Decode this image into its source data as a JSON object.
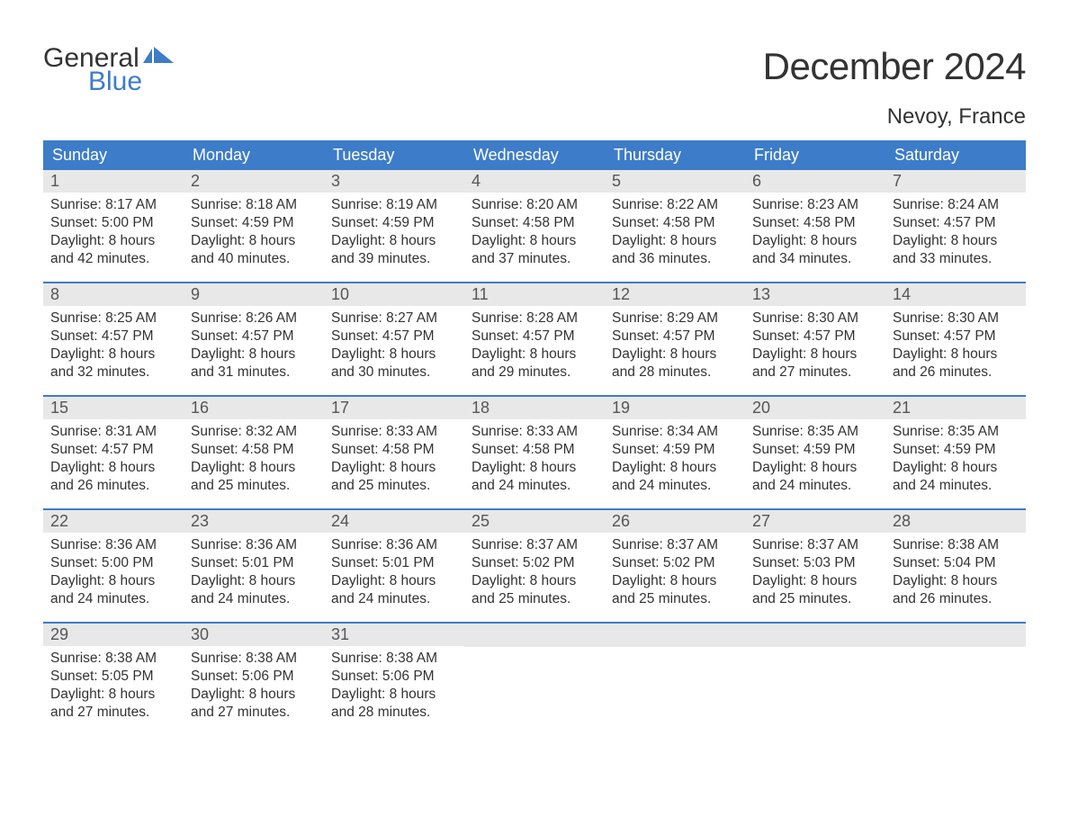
{
  "logo": {
    "text1": "General",
    "text2": "Blue",
    "flag_color": "#3d7cc9"
  },
  "title": "December 2024",
  "location": "Nevoy, France",
  "header_bg": "#3d7cc9",
  "header_text_color": "#ffffff",
  "daynum_bg": "#e8e8e8",
  "border_color": "#3d7cc9",
  "text_color": "#333333",
  "fontsize_title": 42,
  "fontsize_location": 24,
  "fontsize_weekday": 18,
  "fontsize_body": 15.5,
  "weekdays": [
    "Sunday",
    "Monday",
    "Tuesday",
    "Wednesday",
    "Thursday",
    "Friday",
    "Saturday"
  ],
  "weeks": [
    [
      {
        "n": "1",
        "sunrise": "8:17 AM",
        "sunset": "5:00 PM",
        "dl1": "Daylight: 8 hours",
        "dl2": "and 42 minutes."
      },
      {
        "n": "2",
        "sunrise": "8:18 AM",
        "sunset": "4:59 PM",
        "dl1": "Daylight: 8 hours",
        "dl2": "and 40 minutes."
      },
      {
        "n": "3",
        "sunrise": "8:19 AM",
        "sunset": "4:59 PM",
        "dl1": "Daylight: 8 hours",
        "dl2": "and 39 minutes."
      },
      {
        "n": "4",
        "sunrise": "8:20 AM",
        "sunset": "4:58 PM",
        "dl1": "Daylight: 8 hours",
        "dl2": "and 37 minutes."
      },
      {
        "n": "5",
        "sunrise": "8:22 AM",
        "sunset": "4:58 PM",
        "dl1": "Daylight: 8 hours",
        "dl2": "and 36 minutes."
      },
      {
        "n": "6",
        "sunrise": "8:23 AM",
        "sunset": "4:58 PM",
        "dl1": "Daylight: 8 hours",
        "dl2": "and 34 minutes."
      },
      {
        "n": "7",
        "sunrise": "8:24 AM",
        "sunset": "4:57 PM",
        "dl1": "Daylight: 8 hours",
        "dl2": "and 33 minutes."
      }
    ],
    [
      {
        "n": "8",
        "sunrise": "8:25 AM",
        "sunset": "4:57 PM",
        "dl1": "Daylight: 8 hours",
        "dl2": "and 32 minutes."
      },
      {
        "n": "9",
        "sunrise": "8:26 AM",
        "sunset": "4:57 PM",
        "dl1": "Daylight: 8 hours",
        "dl2": "and 31 minutes."
      },
      {
        "n": "10",
        "sunrise": "8:27 AM",
        "sunset": "4:57 PM",
        "dl1": "Daylight: 8 hours",
        "dl2": "and 30 minutes."
      },
      {
        "n": "11",
        "sunrise": "8:28 AM",
        "sunset": "4:57 PM",
        "dl1": "Daylight: 8 hours",
        "dl2": "and 29 minutes."
      },
      {
        "n": "12",
        "sunrise": "8:29 AM",
        "sunset": "4:57 PM",
        "dl1": "Daylight: 8 hours",
        "dl2": "and 28 minutes."
      },
      {
        "n": "13",
        "sunrise": "8:30 AM",
        "sunset": "4:57 PM",
        "dl1": "Daylight: 8 hours",
        "dl2": "and 27 minutes."
      },
      {
        "n": "14",
        "sunrise": "8:30 AM",
        "sunset": "4:57 PM",
        "dl1": "Daylight: 8 hours",
        "dl2": "and 26 minutes."
      }
    ],
    [
      {
        "n": "15",
        "sunrise": "8:31 AM",
        "sunset": "4:57 PM",
        "dl1": "Daylight: 8 hours",
        "dl2": "and 26 minutes."
      },
      {
        "n": "16",
        "sunrise": "8:32 AM",
        "sunset": "4:58 PM",
        "dl1": "Daylight: 8 hours",
        "dl2": "and 25 minutes."
      },
      {
        "n": "17",
        "sunrise": "8:33 AM",
        "sunset": "4:58 PM",
        "dl1": "Daylight: 8 hours",
        "dl2": "and 25 minutes."
      },
      {
        "n": "18",
        "sunrise": "8:33 AM",
        "sunset": "4:58 PM",
        "dl1": "Daylight: 8 hours",
        "dl2": "and 24 minutes."
      },
      {
        "n": "19",
        "sunrise": "8:34 AM",
        "sunset": "4:59 PM",
        "dl1": "Daylight: 8 hours",
        "dl2": "and 24 minutes."
      },
      {
        "n": "20",
        "sunrise": "8:35 AM",
        "sunset": "4:59 PM",
        "dl1": "Daylight: 8 hours",
        "dl2": "and 24 minutes."
      },
      {
        "n": "21",
        "sunrise": "8:35 AM",
        "sunset": "4:59 PM",
        "dl1": "Daylight: 8 hours",
        "dl2": "and 24 minutes."
      }
    ],
    [
      {
        "n": "22",
        "sunrise": "8:36 AM",
        "sunset": "5:00 PM",
        "dl1": "Daylight: 8 hours",
        "dl2": "and 24 minutes."
      },
      {
        "n": "23",
        "sunrise": "8:36 AM",
        "sunset": "5:01 PM",
        "dl1": "Daylight: 8 hours",
        "dl2": "and 24 minutes."
      },
      {
        "n": "24",
        "sunrise": "8:36 AM",
        "sunset": "5:01 PM",
        "dl1": "Daylight: 8 hours",
        "dl2": "and 24 minutes."
      },
      {
        "n": "25",
        "sunrise": "8:37 AM",
        "sunset": "5:02 PM",
        "dl1": "Daylight: 8 hours",
        "dl2": "and 25 minutes."
      },
      {
        "n": "26",
        "sunrise": "8:37 AM",
        "sunset": "5:02 PM",
        "dl1": "Daylight: 8 hours",
        "dl2": "and 25 minutes."
      },
      {
        "n": "27",
        "sunrise": "8:37 AM",
        "sunset": "5:03 PM",
        "dl1": "Daylight: 8 hours",
        "dl2": "and 25 minutes."
      },
      {
        "n": "28",
        "sunrise": "8:38 AM",
        "sunset": "5:04 PM",
        "dl1": "Daylight: 8 hours",
        "dl2": "and 26 minutes."
      }
    ],
    [
      {
        "n": "29",
        "sunrise": "8:38 AM",
        "sunset": "5:05 PM",
        "dl1": "Daylight: 8 hours",
        "dl2": "and 27 minutes."
      },
      {
        "n": "30",
        "sunrise": "8:38 AM",
        "sunset": "5:06 PM",
        "dl1": "Daylight: 8 hours",
        "dl2": "and 27 minutes."
      },
      {
        "n": "31",
        "sunrise": "8:38 AM",
        "sunset": "5:06 PM",
        "dl1": "Daylight: 8 hours",
        "dl2": "and 28 minutes."
      },
      {
        "empty": true
      },
      {
        "empty": true
      },
      {
        "empty": true
      },
      {
        "empty": true
      }
    ]
  ],
  "labels": {
    "sunrise": "Sunrise: ",
    "sunset": "Sunset: "
  }
}
